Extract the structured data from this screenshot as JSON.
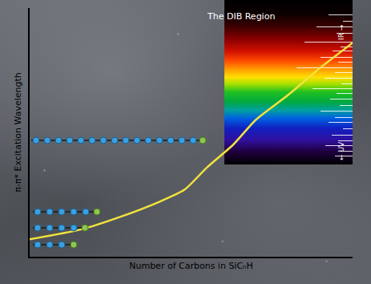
{
  "chart_data": {
    "type": "line",
    "x": [
      0,
      16,
      28,
      40,
      48,
      55,
      63,
      70,
      80,
      90,
      100
    ],
    "values": [
      7,
      11,
      16,
      22,
      27,
      36,
      45,
      55,
      65,
      76,
      86
    ],
    "color": "#f2e33c",
    "x_label": "Number of Carbons in SiCₙH",
    "y_label": "π-π* Excitation Wavelength",
    "annotations": [
      "The DIB Region",
      "IR →",
      "← UV"
    ],
    "xlim": [
      0,
      100
    ],
    "ylim": [
      0,
      100
    ],
    "tick_labels": false,
    "grid": false
  }
}
